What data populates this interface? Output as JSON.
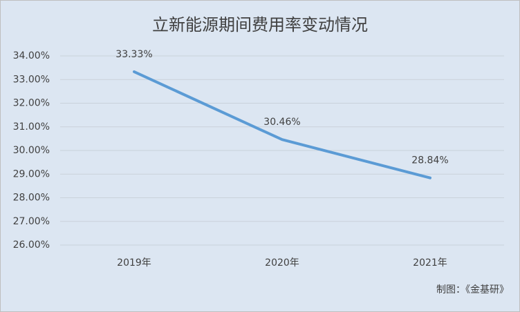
{
  "chart_data": {
    "type": "line",
    "title": "立新能源期间费用率变动情况",
    "categories": [
      "2019年",
      "2020年",
      "2021年"
    ],
    "values": [
      33.33,
      30.46,
      28.84
    ],
    "value_labels": [
      "33.33%",
      "30.46%",
      "28.84%"
    ],
    "color": "#5b9bd5",
    "ylim": [
      26,
      34
    ],
    "yticks": [
      {
        "value": 26,
        "label": "26.00%"
      },
      {
        "value": 27,
        "label": "27.00%"
      },
      {
        "value": 28,
        "label": "28.00%"
      },
      {
        "value": 29,
        "label": "29.00%"
      },
      {
        "value": 30,
        "label": "30.00%"
      },
      {
        "value": 31,
        "label": "31.00%"
      },
      {
        "value": 32,
        "label": "32.00%"
      },
      {
        "value": 33,
        "label": "33.00%"
      },
      {
        "value": 34,
        "label": "34.00%"
      }
    ],
    "grid": true,
    "source": "制图：《金基研》"
  }
}
